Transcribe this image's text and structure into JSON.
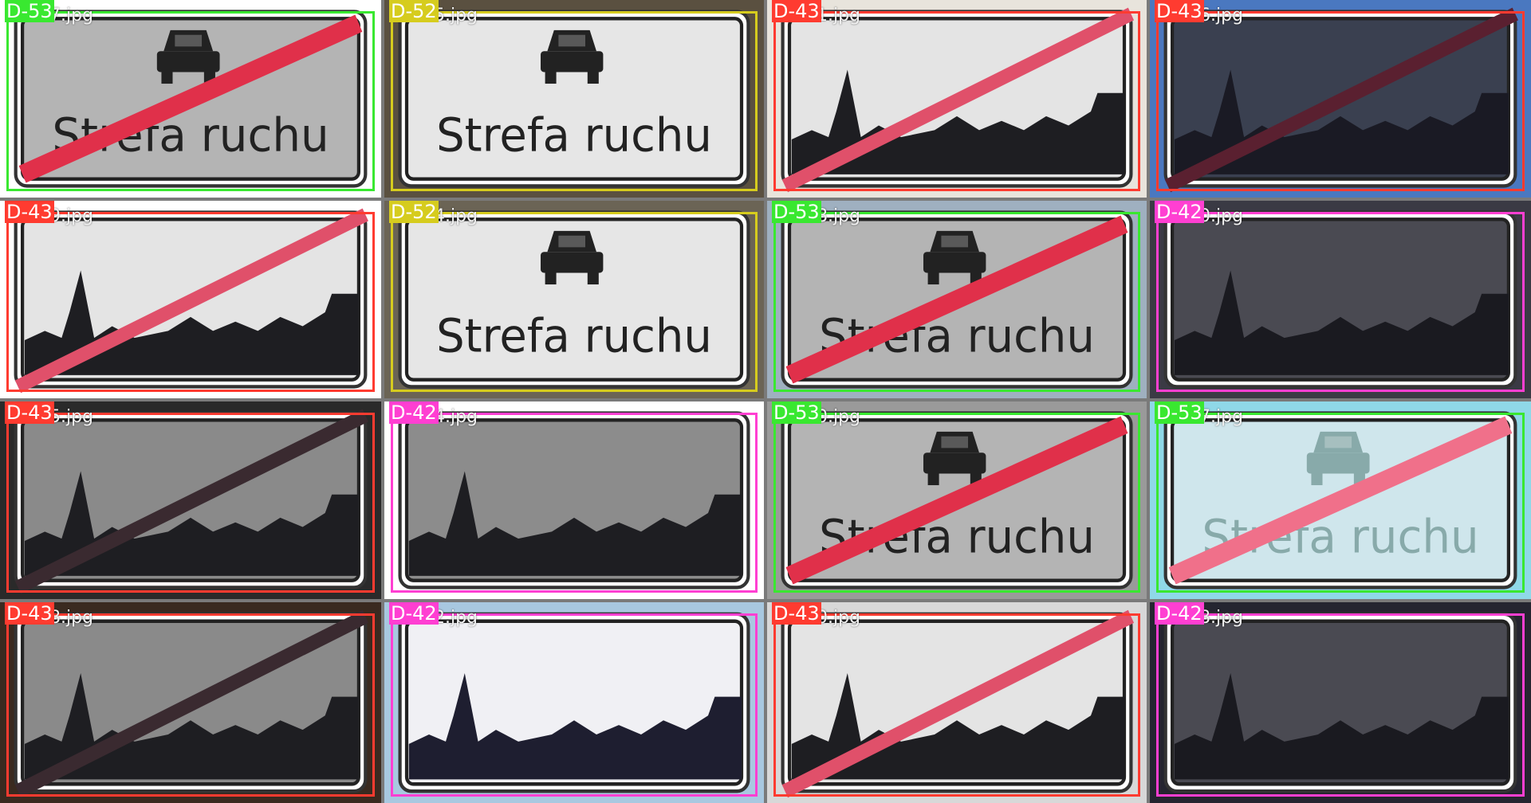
{
  "colors": {
    "D-42": "#ff3fd2",
    "D-43": "#ff3b30",
    "D-52": "#d6cc1e",
    "D-53": "#39e830"
  },
  "tiles": [
    {
      "label": "D-53",
      "filename": "21107.jpg",
      "sign": "strefa-end",
      "bg": "#ffffff"
    },
    {
      "label": "D-52",
      "filename": "21085.jpg",
      "sign": "strefa",
      "bg": "#5a5040"
    },
    {
      "label": "D-43",
      "filename": "20681.jpg",
      "sign": "town-end",
      "bg": "#e8e4dc"
    },
    {
      "label": "D-43",
      "filename": "20736.jpg",
      "sign": "town-end-dark",
      "bg": "#4a78c0"
    },
    {
      "label": "D-43",
      "filename": "20709.jpg",
      "sign": "town-end",
      "bg": "#ffffff"
    },
    {
      "label": "D-52",
      "filename": "21124.jpg",
      "sign": "strefa",
      "bg": "#6b6455"
    },
    {
      "label": "D-53",
      "filename": "21168.jpg",
      "sign": "strefa-end",
      "bg": "#9fb0c0"
    },
    {
      "label": "D-42",
      "filename": "20510.jpg",
      "sign": "town-dark",
      "bg": "#3a3a44"
    },
    {
      "label": "D-43",
      "filename": "20685.jpg",
      "sign": "town-end-gray",
      "bg": "#2a2a2a"
    },
    {
      "label": "D-42",
      "filename": "20484.jpg",
      "sign": "town",
      "bg": "#ffffff"
    },
    {
      "label": "D-53",
      "filename": "21150.jpg",
      "sign": "strefa-end",
      "bg": "#9a9a9a"
    },
    {
      "label": "D-53",
      "filename": "21177.jpg",
      "sign": "strefa-end-faded",
      "bg": "#8fd8e8"
    },
    {
      "label": "D-43",
      "filename": "20678.jpg",
      "sign": "town-end-gray",
      "bg": "#3a2a20"
    },
    {
      "label": "D-42",
      "filename": "20662.jpg",
      "sign": "town-white",
      "bg": "#a8c8e0"
    },
    {
      "label": "D-43",
      "filename": "20710.jpg",
      "sign": "town-end",
      "bg": "#d8d8d8"
    },
    {
      "label": "D-42",
      "filename": "20458.jpg",
      "sign": "town-dark",
      "bg": "#252530"
    }
  ],
  "sign_text": "Strefa ruchu"
}
